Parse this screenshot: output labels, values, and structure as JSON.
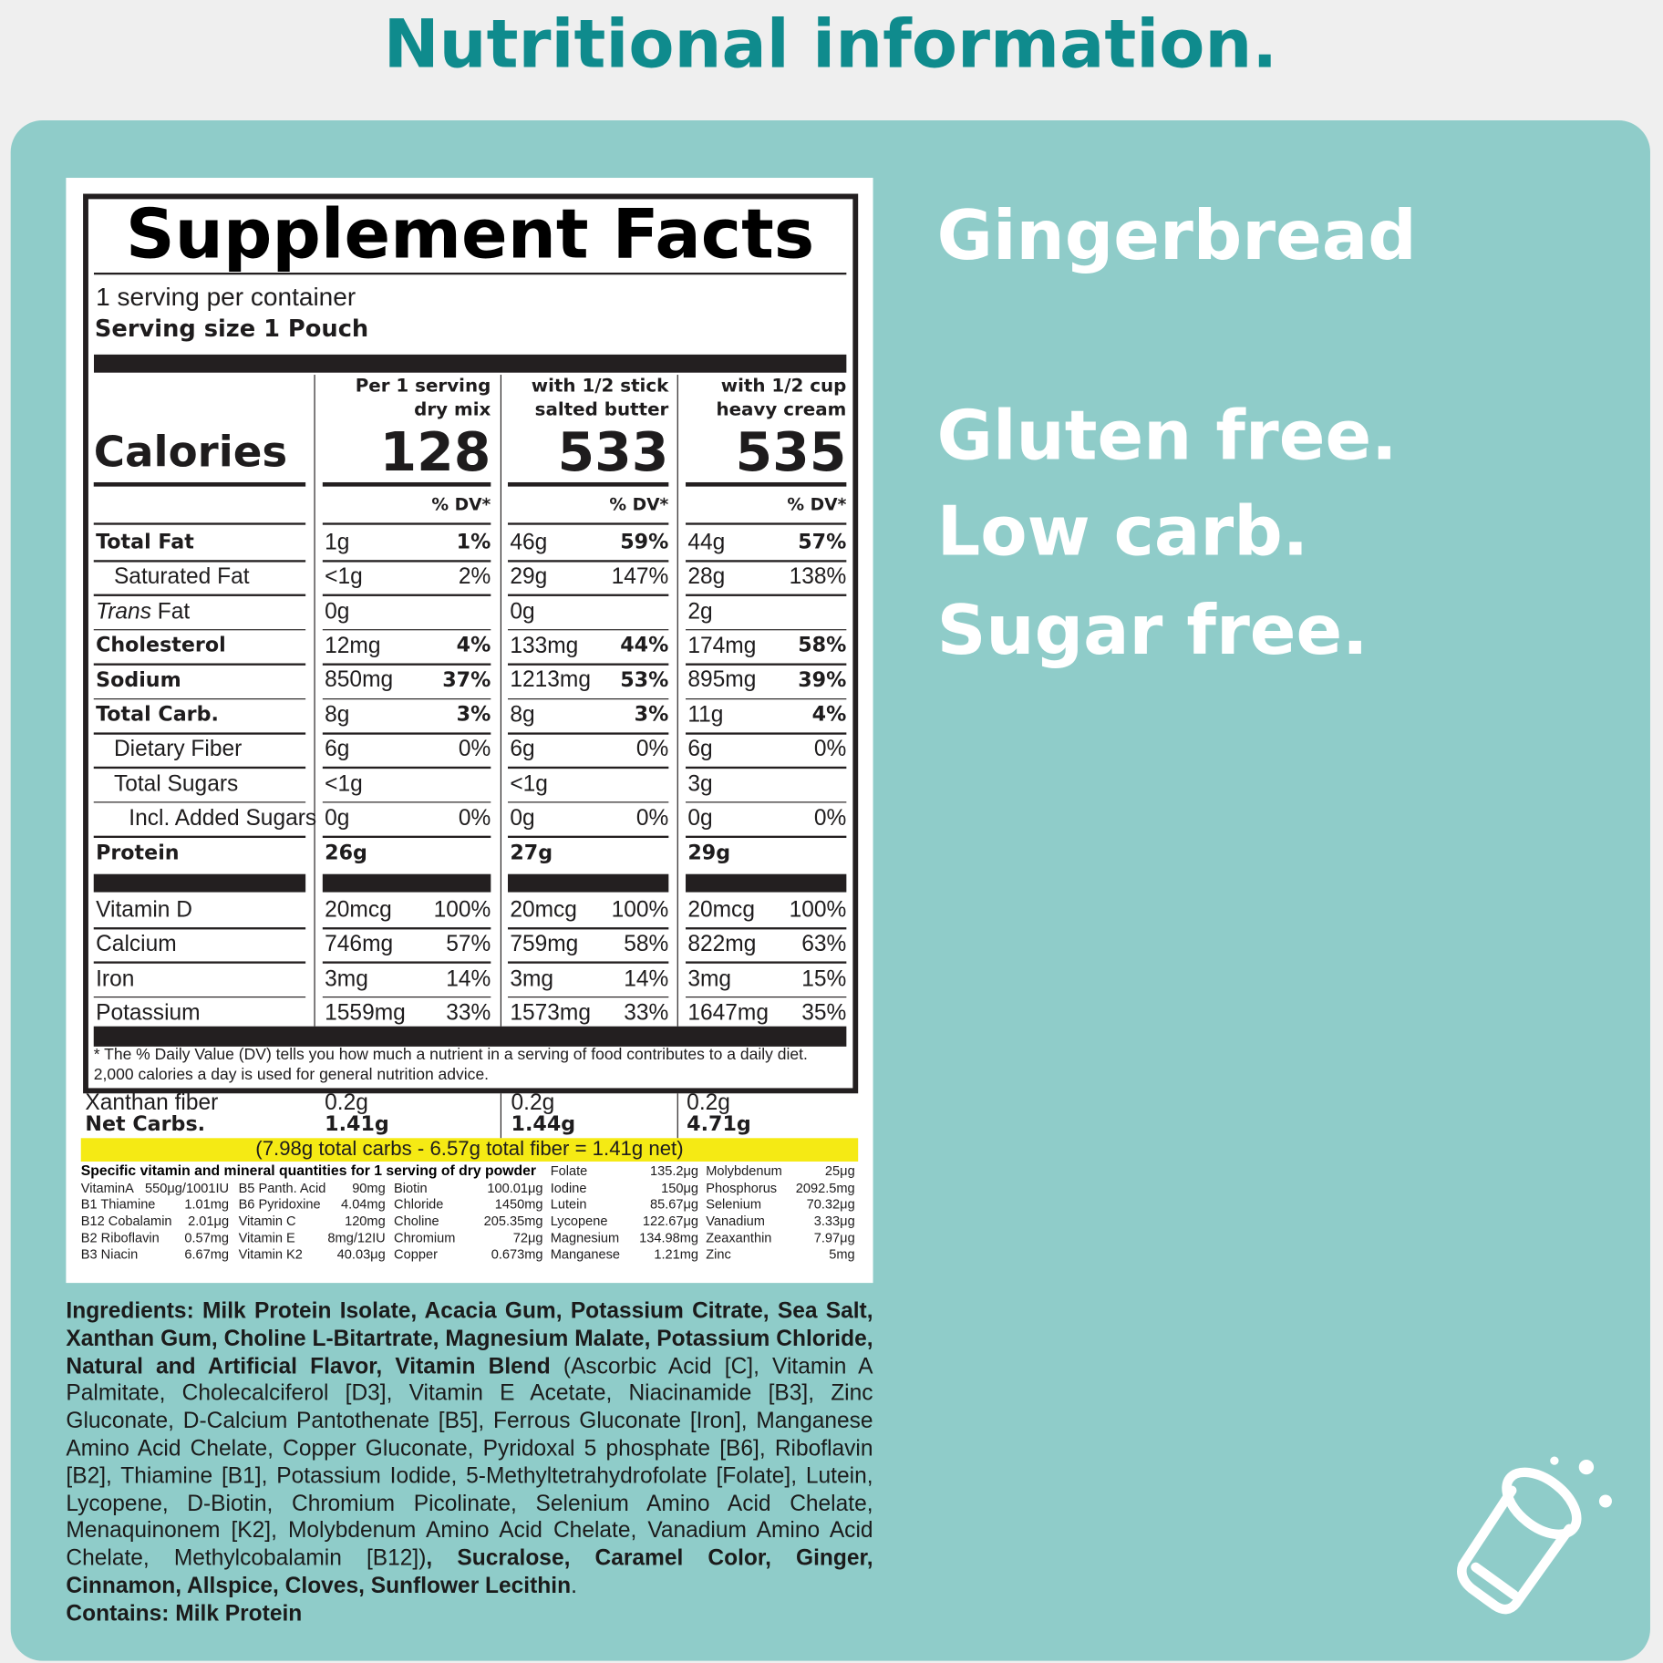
{
  "header": {
    "title": "Nutritional information."
  },
  "side": {
    "flavor": "Gingerbread",
    "claims": [
      "Gluten free.",
      "Low carb.",
      "Sugar free."
    ]
  },
  "label": {
    "title": "Supplement Facts",
    "servings": "1 serving per container",
    "serving_size": "Serving size 1 Pouch",
    "calories_label": "Calories",
    "dv_header": "% DV*",
    "columns": [
      {
        "header": [
          "Per 1 serving",
          "dry mix"
        ],
        "calories": 128
      },
      {
        "header": [
          "with 1/2 stick",
          "salted butter"
        ],
        "calories": 533
      },
      {
        "header": [
          "with 1/2 cup",
          "heavy cream"
        ],
        "calories": 535
      }
    ],
    "rows": [
      {
        "name": "Total Fat",
        "bold": true,
        "cells": [
          [
            "1g",
            "1%"
          ],
          [
            "46g",
            "59%"
          ],
          [
            "44g",
            "57%"
          ]
        ]
      },
      {
        "name": "Saturated Fat",
        "indent": 1,
        "cells": [
          [
            "<1g",
            "2%"
          ],
          [
            "29g",
            "147%"
          ],
          [
            "28g",
            "138%"
          ]
        ]
      },
      {
        "name_em": "Trans",
        "name": " Fat",
        "cells": [
          [
            "0g"
          ],
          [
            "0g"
          ],
          [
            "2g"
          ]
        ]
      },
      {
        "name": "Cholesterol",
        "bold": true,
        "cells": [
          [
            "12mg",
            "4%"
          ],
          [
            "133mg",
            "44%"
          ],
          [
            "174mg",
            "58%"
          ]
        ]
      },
      {
        "name": "Sodium",
        "bold": true,
        "cells": [
          [
            "850mg",
            "37%"
          ],
          [
            "1213mg",
            "53%"
          ],
          [
            "895mg",
            "39%"
          ]
        ]
      },
      {
        "name": "Total Carb.",
        "bold": true,
        "cells": [
          [
            "8g",
            "3%"
          ],
          [
            "8g",
            "3%"
          ],
          [
            "11g",
            "4%"
          ]
        ]
      },
      {
        "name": "Dietary Fiber",
        "indent": 1,
        "cells": [
          [
            "6g",
            "0%"
          ],
          [
            "6g",
            "0%"
          ],
          [
            "6g",
            "0%"
          ]
        ]
      },
      {
        "name": "Total Sugars",
        "indent": 1,
        "cells": [
          [
            "<1g"
          ],
          [
            "<1g"
          ],
          [
            "3g"
          ]
        ]
      },
      {
        "name": "Incl. Added Sugars",
        "indent": 2,
        "cells": [
          [
            "0g",
            "0%"
          ],
          [
            "0g",
            "0%"
          ],
          [
            "0g",
            "0%"
          ]
        ]
      },
      {
        "name": "Protein",
        "bold": true,
        "cells": [
          [
            "26g"
          ],
          [
            "27g"
          ],
          [
            "29g"
          ]
        ]
      }
    ],
    "vitamins": [
      {
        "name": "Vitamin D",
        "cells": [
          [
            "20mcg",
            "100%"
          ],
          [
            "20mcg",
            "100%"
          ],
          [
            "20mcg",
            "100%"
          ]
        ]
      },
      {
        "name": "Calcium",
        "cells": [
          [
            "746mg",
            "57%"
          ],
          [
            "759mg",
            "58%"
          ],
          [
            "822mg",
            "63%"
          ]
        ]
      },
      {
        "name": "Iron",
        "cells": [
          [
            "3mg",
            "14%"
          ],
          [
            "3mg",
            "14%"
          ],
          [
            "3mg",
            "15%"
          ]
        ]
      },
      {
        "name": "Potassium",
        "cells": [
          [
            "1559mg",
            "33%"
          ],
          [
            "1573mg",
            "33%"
          ],
          [
            "1647mg",
            "35%"
          ]
        ]
      }
    ],
    "footnote": [
      "* The % Daily Value (DV) tells you how much a nutrient in a serving of food contributes to a daily diet.",
      "2,000 calories a day is used for general nutrition advice."
    ]
  },
  "extra": [
    {
      "name": "Xanthan fiber",
      "values": [
        "0.2g",
        "0.2g",
        "0.2g"
      ]
    },
    {
      "name": "Net Carbs.",
      "bold": true,
      "values": [
        "1.41g",
        "1.44g",
        "4.71g"
      ]
    }
  ],
  "net_note": "(7.98g total carbs - 6.57g total fiber = 1.41g net)",
  "micros": {
    "title": "Specific vitamin and mineral quantities for 1 serving of dry powder",
    "columns": [
      [
        {
          "name": "VitaminA",
          "value": "550μg/1001IU"
        },
        {
          "name": "B1 Thiamine",
          "value": "1.01mg"
        },
        {
          "name": "B12 Cobalamin",
          "value": "2.01μg"
        },
        {
          "name": "B2 Riboflavin",
          "value": "0.57mg"
        },
        {
          "name": "B3 Niacin",
          "value": "6.67mg"
        }
      ],
      [
        {
          "name": "B5 Panth. Acid",
          "value": "90mg"
        },
        {
          "name": "B6 Pyridoxine",
          "value": "4.04mg"
        },
        {
          "name": "Vitamin C",
          "value": "120mg"
        },
        {
          "name": "Vitamin E",
          "value": "8mg/12IU"
        },
        {
          "name": "Vitamin K2",
          "value": "40.03μg"
        }
      ],
      [
        {
          "name": "Biotin",
          "value": "100.01μg"
        },
        {
          "name": "Chloride",
          "value": "1450mg"
        },
        {
          "name": "Choline",
          "value": "205.35mg"
        },
        {
          "name": "Chromium",
          "value": "72μg"
        },
        {
          "name": "Copper",
          "value": "0.673mg"
        }
      ],
      [
        {
          "name": "Folate",
          "value": "135.2μg"
        },
        {
          "name": "Iodine",
          "value": "150μg"
        },
        {
          "name": "Lutein",
          "value": "85.67μg"
        },
        {
          "name": "Lycopene",
          "value": "122.67μg"
        },
        {
          "name": "Magnesium",
          "value": "134.98mg"
        },
        {
          "name": "Manganese",
          "value": "1.21mg"
        }
      ],
      [
        {
          "name": "Molybdenum",
          "value": "25μg"
        },
        {
          "name": "Phosphorus",
          "value": "2092.5mg"
        },
        {
          "name": "Selenium",
          "value": "70.32μg"
        },
        {
          "name": "Vanadium",
          "value": "3.33μg"
        },
        {
          "name": "Zeaxanthin",
          "value": "7.97μg"
        },
        {
          "name": "Zinc",
          "value": "5mg"
        }
      ]
    ]
  },
  "ingredients": {
    "segments": [
      {
        "text": "Ingredients: Milk Protein Isolate, Acacia Gum, Potassium Citrate, Sea Salt, Xanthan Gum, Choline L-Bitartrate, Magnesium Malate, Potassium Chloride, Natural and Artificial Flavor, Vitamin Blend",
        "bold": true
      },
      {
        "text": " (Ascorbic Acid [C], Vitamin A Palmitate, Cholecalciferol [D3], Vitamin E Acetate, Niacinamide [B3], Zinc Gluconate, D-Calcium Pantothenate [B5], Ferrous Gluconate [Iron], Manganese Amino Acid Chelate, Copper Gluconate, Pyridoxal 5 phosphate [B6], Riboflavin [B2], Thiamine [B1], Potassium Iodide, 5-Methyltetrahydrofolate [Folate], Lutein, Lycopene, D-Biotin, Chromium Picolinate, Selenium Amino Acid Chelate, Menaquinonem [K2], Molybdenum Amino Acid Chelate, Vanadium Amino Acid Chelate, Methylcobalamin [B12])"
      },
      {
        "text": ", Sucralose, Caramel Color, Ginger, Cinnamon, Allspice, Cloves, Sunflower Lecithin",
        "bold": true
      },
      {
        "text": "."
      }
    ],
    "contains": "Contains: Milk Protein"
  }
}
